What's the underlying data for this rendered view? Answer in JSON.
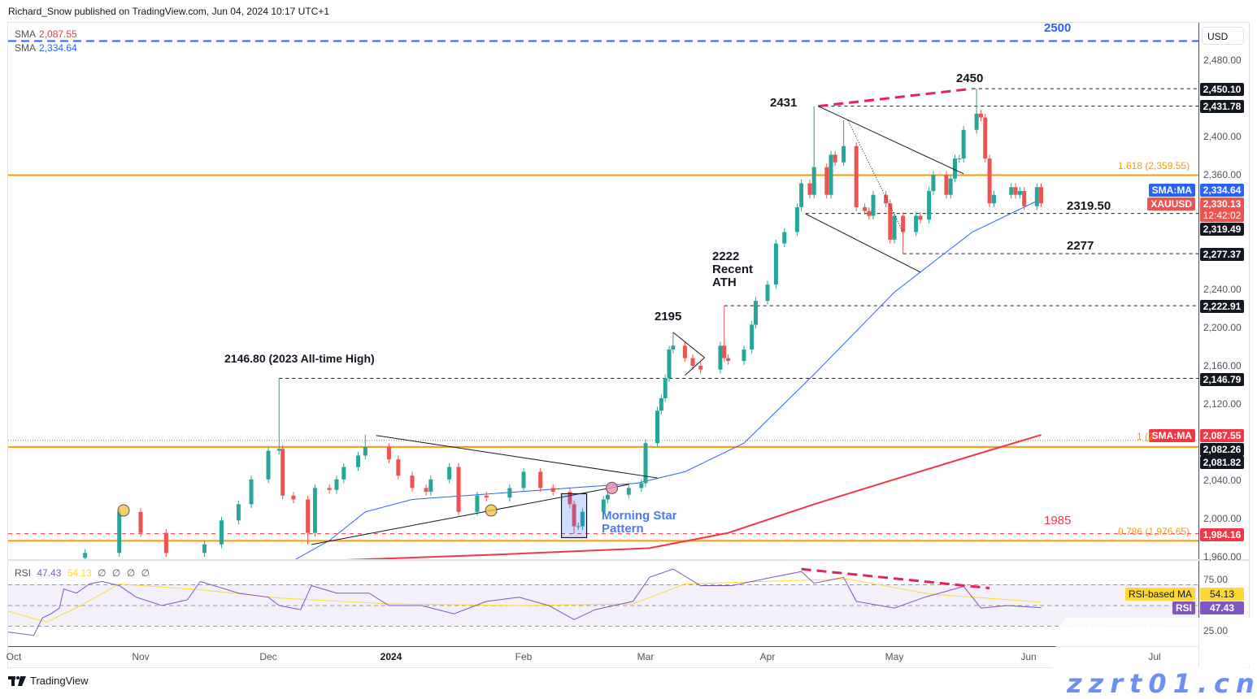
{
  "header": {
    "published": "Richard_Snow published on TradingView.com, Jun 04, 2024 10:17 UTC+1"
  },
  "legend": {
    "sma1": {
      "label": "SMA",
      "value": "2,087.55",
      "color": "#f23645"
    },
    "sma2": {
      "label": "SMA",
      "value": "2,334.64",
      "color": "#2962ff"
    }
  },
  "rsi_legend": {
    "label": "RSI",
    "rsi": "47.43",
    "ma": "54.13",
    "extras": [
      "∅",
      "∅",
      "∅",
      "∅"
    ]
  },
  "currency": "USD",
  "price_axis": [
    "2,480.00",
    "2,400.00",
    "2,360.00",
    "2,240.00",
    "2,200.00",
    "2,160.00",
    "2,120.00",
    "2,040.00",
    "2,000.00",
    "1,960.00"
  ],
  "rsi_axis": [
    "75.00",
    "25.00"
  ],
  "time_axis": [
    "Oct",
    "Nov",
    "Dec",
    "2024",
    "Feb",
    "Mar",
    "Apr",
    "May",
    "Jun",
    "Jul"
  ],
  "price_tags": {
    "t2450": "2,450.10",
    "t2431": "2,431.78",
    "sma_ma_blue_name": "SMA:MA",
    "sma_ma_blue": "2,334.64",
    "xau_name": "XAUUSD",
    "xau": "2,330.13",
    "countdown": "12:42:02",
    "t2319": "2,319.49",
    "t2277": "2,277.37",
    "t2222": "2,222.91",
    "t2146": "2,146.79",
    "sma_ma_red_name": "SMA:MA",
    "sma_ma_red": "2,087.55",
    "t2082": "2,082.26",
    "t2081": "2,081.82",
    "t1984": "1,984.16",
    "rsi_ma_name": "RSI-based MA",
    "rsi_ma": "54.13",
    "rsi_name": "RSI",
    "rsi": "47.43"
  },
  "annotations": {
    "a2500": "2500",
    "a2450": "2450",
    "a2431": "2431",
    "a2222": [
      "2222",
      "Recent",
      "ATH"
    ],
    "a2195": "2195",
    "a2146": "2146.80 (2023 All-time High)",
    "a2319": "2319.50",
    "a2277": "2277",
    "a1985": "1985",
    "morning_star": [
      "Morning Star",
      "Pattern"
    ],
    "fib1618": "1.618 (2,359.55)",
    "fib1": "1 (2",
    "fib0786": "0.786 (1,976.65)"
  },
  "footer": {
    "brand": "TradingView"
  },
  "watermark": "zzrt01.cn",
  "colors": {
    "up": "#26a69a",
    "down": "#ef5350",
    "sma50": "#2962ff",
    "sma200": "#f23645",
    "fib": "#ff9800",
    "rsi": "#7e57c2",
    "rsi_ma": "#fdd835",
    "divergence": "#e91e63"
  },
  "chart_data": {
    "type": "candlestick",
    "symbol": "XAUUSD",
    "ylim": [
      1960,
      2510
    ],
    "candles": [
      {
        "d": "2023-10-19",
        "c": 1964
      },
      {
        "d": "2023-10-27",
        "c": 2007
      },
      {
        "d": "2023-11-01",
        "c": 1985
      },
      {
        "d": "2023-11-07",
        "c": 1964
      },
      {
        "d": "2023-11-16",
        "c": 1973
      },
      {
        "d": "2023-11-20",
        "c": 1998
      },
      {
        "d": "2023-11-24",
        "c": 2015
      },
      {
        "d": "2023-11-27",
        "c": 2041
      },
      {
        "d": "2023-12-01",
        "c": 2071
      },
      {
        "d": "2023-12-04",
        "c": 2073,
        "h": 2146.8
      },
      {
        "d": "2023-12-05",
        "c": 2024
      },
      {
        "d": "2023-12-08",
        "c": 2020
      },
      {
        "d": "2023-12-12",
        "c": 1985,
        "l": 1973
      },
      {
        "d": "2023-12-14",
        "c": 2032
      },
      {
        "d": "2023-12-18",
        "c": 2030
      },
      {
        "d": "2023-12-20",
        "c": 2041
      },
      {
        "d": "2023-12-22",
        "c": 2054
      },
      {
        "d": "2023-12-26",
        "c": 2066
      },
      {
        "d": "2023-12-28",
        "c": 2075,
        "h": 2088
      },
      {
        "d": "2024-01-03",
        "c": 2062
      },
      {
        "d": "2024-01-05",
        "c": 2045
      },
      {
        "d": "2024-01-08",
        "c": 2032
      },
      {
        "d": "2024-01-11",
        "c": 2028
      },
      {
        "d": "2024-01-12",
        "c": 2041
      },
      {
        "d": "2024-01-16",
        "c": 2054
      },
      {
        "d": "2024-01-18",
        "c": 2007
      },
      {
        "d": "2024-01-22",
        "c": 2024
      },
      {
        "d": "2024-01-24",
        "c": 2022
      },
      {
        "d": "2024-01-29",
        "c": 2032
      },
      {
        "d": "2024-02-01",
        "c": 2049
      },
      {
        "d": "2024-02-05",
        "c": 2032
      },
      {
        "d": "2024-02-08",
        "c": 2028
      },
      {
        "d": "2024-02-12",
        "c": 2015
      },
      {
        "d": "2024-02-13",
        "c": 1992,
        "l": 1984
      },
      {
        "d": "2024-02-14",
        "c": 1992
      },
      {
        "d": "2024-02-15",
        "c": 2007
      },
      {
        "d": "2024-02-20",
        "c": 2020
      },
      {
        "d": "2024-02-21",
        "c": 2025
      },
      {
        "d": "2024-02-26",
        "c": 2032
      },
      {
        "d": "2024-02-29",
        "c": 2037
      },
      {
        "d": "2024-03-01",
        "c": 2079
      },
      {
        "d": "2024-03-04",
        "c": 2113
      },
      {
        "d": "2024-03-05",
        "c": 2126
      },
      {
        "d": "2024-03-06",
        "c": 2147
      },
      {
        "d": "2024-03-07",
        "c": 2177
      },
      {
        "d": "2024-03-08",
        "c": 2181,
        "h": 2195
      },
      {
        "d": "2024-03-11",
        "c": 2168
      },
      {
        "d": "2024-03-13",
        "c": 2160
      },
      {
        "d": "2024-03-15",
        "c": 2156
      },
      {
        "d": "2024-03-20",
        "c": 2181
      },
      {
        "d": "2024-03-21",
        "c": 2168,
        "h": 2222.91
      },
      {
        "d": "2024-03-22",
        "c": 2165
      },
      {
        "d": "2024-03-26",
        "c": 2177
      },
      {
        "d": "2024-03-28",
        "c": 2203
      },
      {
        "d": "2024-03-29",
        "c": 2228
      },
      {
        "d": "2024-04-01",
        "c": 2245
      },
      {
        "d": "2024-04-03",
        "c": 2288
      },
      {
        "d": "2024-04-05",
        "c": 2300
      },
      {
        "d": "2024-04-08",
        "c": 2326
      },
      {
        "d": "2024-04-09",
        "c": 2351
      },
      {
        "d": "2024-04-11",
        "c": 2339
      },
      {
        "d": "2024-04-12",
        "c": 2368,
        "h": 2431.78
      },
      {
        "d": "2024-04-15",
        "c": 2339
      },
      {
        "d": "2024-04-16",
        "c": 2381
      },
      {
        "d": "2024-04-17",
        "c": 2373
      },
      {
        "d": "2024-04-19",
        "c": 2390,
        "h": 2417
      },
      {
        "d": "2024-04-22",
        "c": 2326
      },
      {
        "d": "2024-04-24",
        "c": 2322
      },
      {
        "d": "2024-04-25",
        "c": 2317
      },
      {
        "d": "2024-04-26",
        "c": 2339
      },
      {
        "d": "2024-04-29",
        "c": 2330
      },
      {
        "d": "2024-04-30",
        "c": 2292
      },
      {
        "d": "2024-05-01",
        "c": 2317
      },
      {
        "d": "2024-05-03",
        "c": 2300,
        "l": 2277.37
      },
      {
        "d": "2024-05-06",
        "c": 2317
      },
      {
        "d": "2024-05-07",
        "c": 2313
      },
      {
        "d": "2024-05-09",
        "c": 2343
      },
      {
        "d": "2024-05-10",
        "c": 2360
      },
      {
        "d": "2024-05-13",
        "c": 2339
      },
      {
        "d": "2024-05-14",
        "c": 2356
      },
      {
        "d": "2024-05-15",
        "c": 2377
      },
      {
        "d": "2024-05-16",
        "c": 2377
      },
      {
        "d": "2024-05-17",
        "c": 2407
      },
      {
        "d": "2024-05-20",
        "c": 2424,
        "h": 2450.1
      },
      {
        "d": "2024-05-21",
        "c": 2420
      },
      {
        "d": "2024-05-22",
        "c": 2377
      },
      {
        "d": "2024-05-23",
        "c": 2330
      },
      {
        "d": "2024-05-24",
        "c": 2339
      },
      {
        "d": "2024-05-28",
        "c": 2347
      },
      {
        "d": "2024-05-29",
        "c": 2339
      },
      {
        "d": "2024-05-30",
        "c": 2343
      },
      {
        "d": "2024-05-31",
        "c": 2327
      },
      {
        "d": "2024-06-03",
        "c": 2347
      },
      {
        "d": "2024-06-04",
        "c": 2330.13
      }
    ],
    "sma50": [
      [
        "2023-12-08",
        1956
      ],
      [
        "2023-12-18",
        1977
      ],
      [
        "2023-12-28",
        2007
      ],
      [
        "2024-01-08",
        2020
      ],
      [
        "2024-01-25",
        2026
      ],
      [
        "2024-02-12",
        2032
      ],
      [
        "2024-02-28",
        2037
      ],
      [
        "2024-03-11",
        2049
      ],
      [
        "2024-03-26",
        2079
      ],
      [
        "2024-04-12",
        2151
      ],
      [
        "2024-05-01",
        2237
      ],
      [
        "2024-05-19",
        2300
      ],
      [
        "2024-06-04",
        2334.64
      ]
    ],
    "sma200": [
      [
        "2023-12-18",
        1956
      ],
      [
        "2024-01-25",
        1962
      ],
      [
        "2024-03-02",
        1969
      ],
      [
        "2024-03-22",
        1985
      ],
      [
        "2024-04-12",
        2015
      ],
      [
        "2024-05-01",
        2041
      ],
      [
        "2024-05-19",
        2066
      ],
      [
        "2024-06-04",
        2087.55
      ]
    ],
    "horizontal_levels": [
      {
        "price": 2500,
        "from": "2023-10-01",
        "style": "blue-dashed"
      },
      {
        "price": 2450.1,
        "from": "2024-05-19",
        "style": "dashed"
      },
      {
        "price": 2431.78,
        "from": "2024-04-13",
        "style": "dashed"
      },
      {
        "price": 2319.49,
        "from": "2024-04-10",
        "style": "dashed"
      },
      {
        "price": 2277.37,
        "from": "2024-05-03",
        "style": "dashed"
      },
      {
        "price": 2222.91,
        "from": "2024-03-21",
        "style": "dashed"
      },
      {
        "price": 2146.79,
        "from": "2023-12-04",
        "style": "dashed"
      },
      {
        "price": 2081.82,
        "from": "2023-10-01",
        "style": "dotted"
      },
      {
        "price": 1984.16,
        "from": "2023-10-01",
        "style": "red-dashed"
      }
    ],
    "fib_levels": [
      {
        "ratio": 1.618,
        "price": 2359.55
      },
      {
        "ratio": 1,
        "price": 2075
      },
      {
        "ratio": 0.786,
        "price": 1976.65
      }
    ],
    "trendlines": [
      {
        "name": "resistance-divergence",
        "p1": [
          "2024-04-13",
          2431.78
        ],
        "p2": [
          "2024-05-19",
          2450.1
        ],
        "style": "divergence"
      },
      {
        "name": "channel-upper",
        "p1": [
          "2024-04-13",
          2431.78
        ],
        "p2": [
          "2024-05-17",
          2361
        ]
      },
      {
        "name": "channel-lower",
        "p1": [
          "2024-04-10",
          2319
        ],
        "p2": [
          "2024-05-07",
          2258
        ]
      },
      {
        "name": "dotted-line",
        "p1": [
          "2024-04-20",
          2417
        ],
        "p2": [
          "2024-05-03",
          2300
        ],
        "style": "dotted"
      },
      {
        "name": "pennant-upper",
        "p1": [
          "2024-03-08",
          2195
        ],
        "p2": [
          "2024-03-16",
          2168.5
        ]
      },
      {
        "name": "pennant-lower",
        "p1": [
          "2024-03-11",
          2150
        ],
        "p2": [
          "2024-03-16",
          2168.5
        ]
      },
      {
        "name": "triangle-upper",
        "p1": [
          "2023-12-31",
          2087
        ],
        "p2": [
          "2024-03-04",
          2042.5
        ]
      },
      {
        "name": "triangle-lower",
        "p1": [
          "2023-12-13",
          1972.8
        ],
        "p2": [
          "2024-02-26",
          2035.7
        ]
      }
    ],
    "markers": [
      {
        "d": "2023-10-28",
        "price": 2008.5,
        "color": "#f5c242"
      },
      {
        "d": "2024-01-25",
        "price": 2008.5,
        "color": "#f5c242"
      },
      {
        "d": "2024-02-22",
        "price": 2032,
        "color": "#f48fb1"
      }
    ],
    "morning_star_box": {
      "from": "2024-02-10",
      "to": "2024-02-16",
      "top": 2026,
      "bottom": 1980
    },
    "rsi": {
      "ylim": [
        0,
        100
      ],
      "levels": [
        75,
        50,
        25
      ],
      "values": [
        [
          "2023-10-01",
          18
        ],
        [
          "2023-10-07",
          14
        ],
        [
          "2023-10-09",
          35
        ],
        [
          "2023-10-11",
          40
        ],
        [
          "2023-10-13",
          47
        ],
        [
          "2023-10-14",
          70
        ],
        [
          "2023-10-17",
          65
        ],
        [
          "2023-10-20",
          76
        ],
        [
          "2023-10-23",
          79
        ],
        [
          "2023-10-27",
          74
        ],
        [
          "2023-10-31",
          60
        ],
        [
          "2023-11-06",
          50
        ],
        [
          "2023-11-12",
          57
        ],
        [
          "2023-11-15",
          79
        ],
        [
          "2023-11-24",
          65
        ],
        [
          "2023-12-01",
          60
        ],
        [
          "2023-12-04",
          50
        ],
        [
          "2023-12-10",
          45
        ],
        [
          "2023-12-13",
          74
        ],
        [
          "2023-12-20",
          65
        ],
        [
          "2023-12-29",
          65
        ],
        [
          "2024-01-03",
          50
        ],
        [
          "2024-01-10",
          50
        ],
        [
          "2024-01-17",
          40
        ],
        [
          "2024-01-24",
          55
        ],
        [
          "2024-01-31",
          60
        ],
        [
          "2024-02-07",
          50
        ],
        [
          "2024-02-13",
          33
        ],
        [
          "2024-02-18",
          45
        ],
        [
          "2024-02-27",
          55
        ],
        [
          "2024-03-02",
          84
        ],
        [
          "2024-03-08",
          94
        ],
        [
          "2024-03-15",
          74
        ],
        [
          "2024-03-23",
          74
        ],
        [
          "2024-03-31",
          82
        ],
        [
          "2024-04-09",
          91
        ],
        [
          "2024-04-12",
          77
        ],
        [
          "2024-04-19",
          84
        ],
        [
          "2024-04-22",
          55
        ],
        [
          "2024-05-01",
          47
        ],
        [
          "2024-05-08",
          60
        ],
        [
          "2024-05-17",
          73
        ],
        [
          "2024-05-21",
          47
        ],
        [
          "2024-05-27",
          50
        ],
        [
          "2024-06-04",
          47.43
        ]
      ],
      "ma": [
        [
          "2023-10-01",
          43
        ],
        [
          "2023-10-10",
          30
        ],
        [
          "2023-10-18",
          50
        ],
        [
          "2023-10-27",
          76
        ],
        [
          "2023-11-15",
          69
        ],
        [
          "2023-12-04",
          59
        ],
        [
          "2024-01-03",
          52
        ],
        [
          "2024-01-31",
          50
        ],
        [
          "2024-02-27",
          52
        ],
        [
          "2024-03-11",
          76
        ],
        [
          "2024-03-31",
          79
        ],
        [
          "2024-04-20",
          82
        ],
        [
          "2024-05-09",
          64
        ],
        [
          "2024-06-04",
          54.13
        ]
      ],
      "divergence": {
        "p1": [
          "2024-04-09",
          94
        ],
        "p2": [
          "2024-05-23",
          71
        ]
      }
    }
  }
}
